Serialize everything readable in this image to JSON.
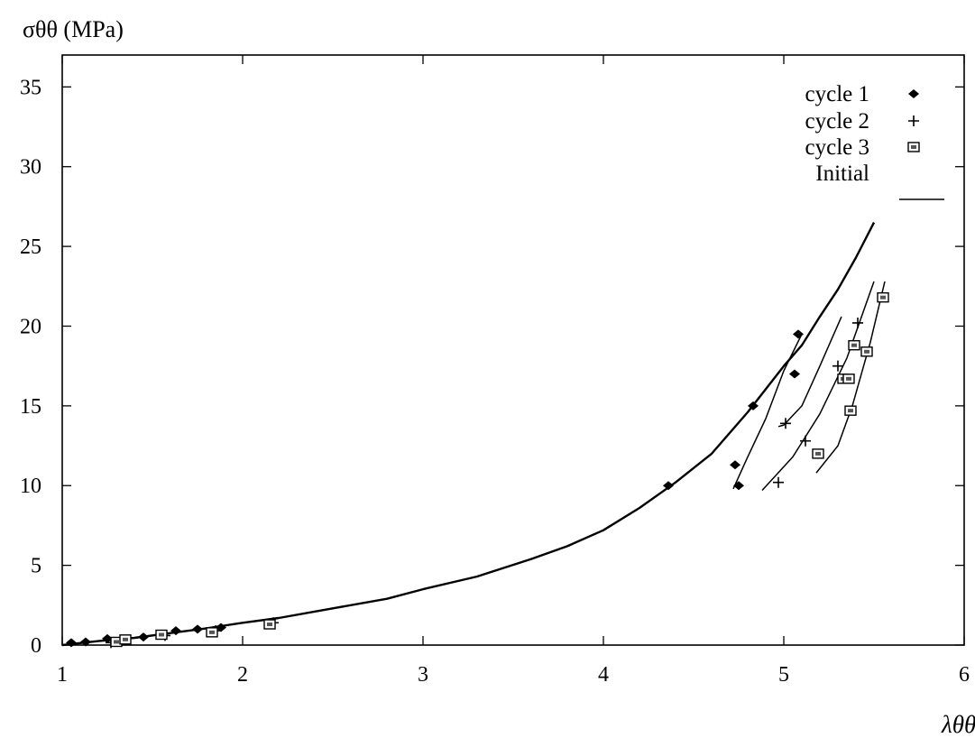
{
  "chart_data": {
    "type": "scatter",
    "ylabel": "σθθ (MPa)",
    "xlabel": "λθθ",
    "xlim": [
      1,
      6
    ],
    "ylim": [
      0,
      37
    ],
    "xticks": [
      "1",
      "2",
      "3",
      "4",
      "5",
      "6"
    ],
    "yticks": [
      "0",
      "5",
      "10",
      "15",
      "20",
      "25",
      "30",
      "35"
    ],
    "grid": false,
    "legend_position": "top-right",
    "series": [
      {
        "name": "cycle 1",
        "marker": "diamond",
        "points": [
          [
            1.05,
            0.15
          ],
          [
            1.13,
            0.2
          ],
          [
            1.25,
            0.4
          ],
          [
            1.33,
            0.35
          ],
          [
            1.45,
            0.5
          ],
          [
            1.55,
            0.7
          ],
          [
            1.63,
            0.9
          ],
          [
            1.75,
            1.0
          ],
          [
            1.88,
            1.1
          ],
          [
            4.36,
            10.0
          ],
          [
            4.83,
            15.0
          ],
          [
            5.08,
            19.5
          ],
          [
            5.06,
            17.0
          ],
          [
            4.73,
            11.3
          ],
          [
            4.75,
            10.0
          ]
        ]
      },
      {
        "name": "cycle 2",
        "marker": "plus",
        "points": [
          [
            1.27,
            0.15
          ],
          [
            1.35,
            0.3
          ],
          [
            1.57,
            0.6
          ],
          [
            1.85,
            0.9
          ],
          [
            2.17,
            1.4
          ],
          [
            4.97,
            10.2
          ],
          [
            5.12,
            12.8
          ],
          [
            5.01,
            13.9
          ],
          [
            5.3,
            17.5
          ],
          [
            5.41,
            20.2
          ]
        ]
      },
      {
        "name": "cycle 3",
        "marker": "square",
        "points": [
          [
            1.3,
            0.2
          ],
          [
            1.35,
            0.35
          ],
          [
            1.55,
            0.65
          ],
          [
            1.83,
            0.8
          ],
          [
            2.15,
            1.3
          ],
          [
            5.19,
            12.0
          ],
          [
            5.37,
            14.7
          ],
          [
            5.33,
            16.7
          ],
          [
            5.36,
            16.7
          ],
          [
            5.39,
            18.8
          ],
          [
            5.46,
            18.4
          ],
          [
            5.55,
            21.8
          ]
        ]
      },
      {
        "name": "Initial",
        "marker": "line",
        "points": [
          [
            1.0,
            0.0
          ],
          [
            1.2,
            0.25
          ],
          [
            1.4,
            0.45
          ],
          [
            1.6,
            0.75
          ],
          [
            1.8,
            1.05
          ],
          [
            2.0,
            1.4
          ],
          [
            2.2,
            1.7
          ],
          [
            2.5,
            2.3
          ],
          [
            2.8,
            2.9
          ],
          [
            3.0,
            3.5
          ],
          [
            3.3,
            4.3
          ],
          [
            3.6,
            5.4
          ],
          [
            3.8,
            6.2
          ],
          [
            4.0,
            7.2
          ],
          [
            4.2,
            8.6
          ],
          [
            4.4,
            10.2
          ],
          [
            4.6,
            12.0
          ],
          [
            4.8,
            14.6
          ],
          [
            5.0,
            17.5
          ],
          [
            5.1,
            18.8
          ],
          [
            5.2,
            20.6
          ],
          [
            5.3,
            22.3
          ],
          [
            5.4,
            24.3
          ],
          [
            5.5,
            26.5
          ]
        ]
      }
    ],
    "unload_curves": [
      [
        [
          5.1,
          19.5
        ],
        [
          5.0,
          17.2
        ],
        [
          4.9,
          14.2
        ],
        [
          4.8,
          11.8
        ],
        [
          4.72,
          9.8
        ]
      ],
      [
        [
          5.32,
          20.6
        ],
        [
          5.2,
          17.5
        ],
        [
          5.1,
          15.0
        ],
        [
          5.0,
          13.8
        ],
        [
          4.97,
          13.7
        ]
      ],
      [
        [
          5.5,
          22.8
        ],
        [
          5.35,
          18.0
        ],
        [
          5.2,
          14.5
        ],
        [
          5.05,
          11.8
        ],
        [
          4.88,
          9.7
        ]
      ],
      [
        [
          5.56,
          22.8
        ],
        [
          5.48,
          19.0
        ],
        [
          5.38,
          15.0
        ],
        [
          5.3,
          12.5
        ],
        [
          5.18,
          10.8
        ]
      ]
    ]
  }
}
